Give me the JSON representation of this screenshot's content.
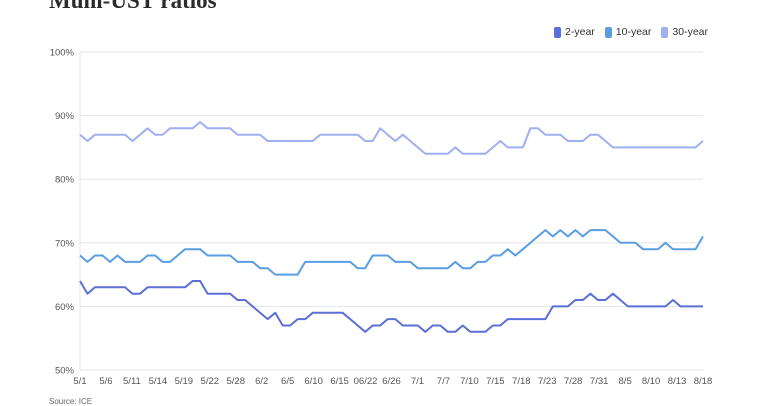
{
  "chart_data": {
    "type": "line",
    "title": "Muni-UST ratios",
    "source": "Source: ICE",
    "xlabel": "",
    "ylabel": "",
    "ylim": [
      50,
      100
    ],
    "y_ticks": [
      "50%",
      "60%",
      "70%",
      "80%",
      "90%",
      "100%"
    ],
    "y_tick_values": [
      50,
      60,
      70,
      80,
      90,
      100
    ],
    "grid": "horizontal",
    "legend_position": "top-right",
    "x": [
      "5/1",
      "5/2",
      "5/3",
      "5/6",
      "5/7",
      "5/8",
      "5/9",
      "5/10",
      "5/11",
      "5/13",
      "5/14",
      "5/15",
      "5/16",
      "5/17",
      "5/19",
      "5/20",
      "5/21",
      "5/22",
      "5/23",
      "5/24",
      "5/28",
      "5/29",
      "5/30",
      "5/31",
      "6/2",
      "6/3",
      "6/4",
      "6/5",
      "6/6",
      "6/7",
      "6/10",
      "6/11",
      "6/12",
      "6/13",
      "6/14",
      "6/15",
      "6/17",
      "6/18",
      "6/20",
      "6/21",
      "6/22",
      "6/24",
      "6/25",
      "6/26",
      "6/27",
      "6/28",
      "7/1",
      "7/2",
      "7/3",
      "7/5",
      "7/7",
      "7/8",
      "7/9",
      "7/10",
      "7/11",
      "7/12",
      "7/15",
      "7/16",
      "7/17",
      "7/18",
      "7/19",
      "7/22",
      "7/23",
      "7/24",
      "7/25",
      "7/26",
      "7/28",
      "7/29",
      "7/30",
      "7/31",
      "8/1",
      "8/2",
      "8/5",
      "8/6",
      "8/7",
      "8/8",
      "8/9",
      "8/10",
      "8/12",
      "8/13",
      "8/14",
      "8/15",
      "8/16",
      "8/18"
    ],
    "x_ticks": [
      "5/1",
      "5/6",
      "5/11",
      "5/14",
      "5/19",
      "5/22",
      "5/28",
      "6/2",
      "6/5",
      "6/10",
      "6/15",
      "06/22",
      "6/26",
      "7/1",
      "7/7",
      "7/10",
      "7/15",
      "7/18",
      "7/23",
      "7/28",
      "7/31",
      "8/5",
      "8/10",
      "8/13",
      "8/18"
    ],
    "series": [
      {
        "name": "2-year",
        "color": "#5b6fd6",
        "values": [
          64,
          62,
          63,
          63,
          63,
          63,
          63,
          62,
          62,
          63,
          63,
          63,
          63,
          63,
          63,
          64,
          64,
          62,
          62,
          62,
          62,
          61,
          61,
          60,
          59,
          58,
          59,
          57,
          57,
          58,
          58,
          59,
          59,
          59,
          59,
          59,
          58,
          57,
          56,
          57,
          57,
          58,
          58,
          57,
          57,
          57,
          56,
          57,
          57,
          56,
          56,
          57,
          56,
          56,
          56,
          57,
          57,
          58,
          58,
          58,
          58,
          58,
          58,
          60,
          60,
          60,
          61,
          61,
          62,
          61,
          61,
          62,
          61,
          60,
          60,
          60,
          60,
          60,
          60,
          61,
          60,
          60,
          60,
          60
        ]
      },
      {
        "name": "10-year",
        "color": "#5a9ee2",
        "values": [
          68,
          67,
          68,
          68,
          67,
          68,
          67,
          67,
          67,
          68,
          68,
          67,
          67,
          68,
          69,
          69,
          69,
          68,
          68,
          68,
          68,
          67,
          67,
          67,
          66,
          66,
          65,
          65,
          65,
          65,
          67,
          67,
          67,
          67,
          67,
          67,
          67,
          66,
          66,
          68,
          68,
          68,
          67,
          67,
          67,
          66,
          66,
          66,
          66,
          66,
          67,
          66,
          66,
          67,
          67,
          68,
          68,
          69,
          68,
          69,
          70,
          71,
          72,
          71,
          72,
          71,
          72,
          71,
          72,
          72,
          72,
          71,
          70,
          70,
          70,
          69,
          69,
          69,
          70,
          69,
          69,
          69,
          69,
          71
        ]
      },
      {
        "name": "30-year",
        "color": "#9fb0f2",
        "values": [
          87,
          86,
          87,
          87,
          87,
          87,
          87,
          86,
          87,
          88,
          87,
          87,
          88,
          88,
          88,
          88,
          89,
          88,
          88,
          88,
          88,
          87,
          87,
          87,
          87,
          86,
          86,
          86,
          86,
          86,
          86,
          86,
          87,
          87,
          87,
          87,
          87,
          87,
          86,
          86,
          88,
          87,
          86,
          87,
          86,
          85,
          84,
          84,
          84,
          84,
          85,
          84,
          84,
          84,
          84,
          85,
          86,
          85,
          85,
          85,
          88,
          88,
          87,
          87,
          87,
          86,
          86,
          86,
          87,
          87,
          86,
          85,
          85,
          85,
          85,
          85,
          85,
          85,
          85,
          85,
          85,
          85,
          85,
          86
        ]
      }
    ]
  }
}
